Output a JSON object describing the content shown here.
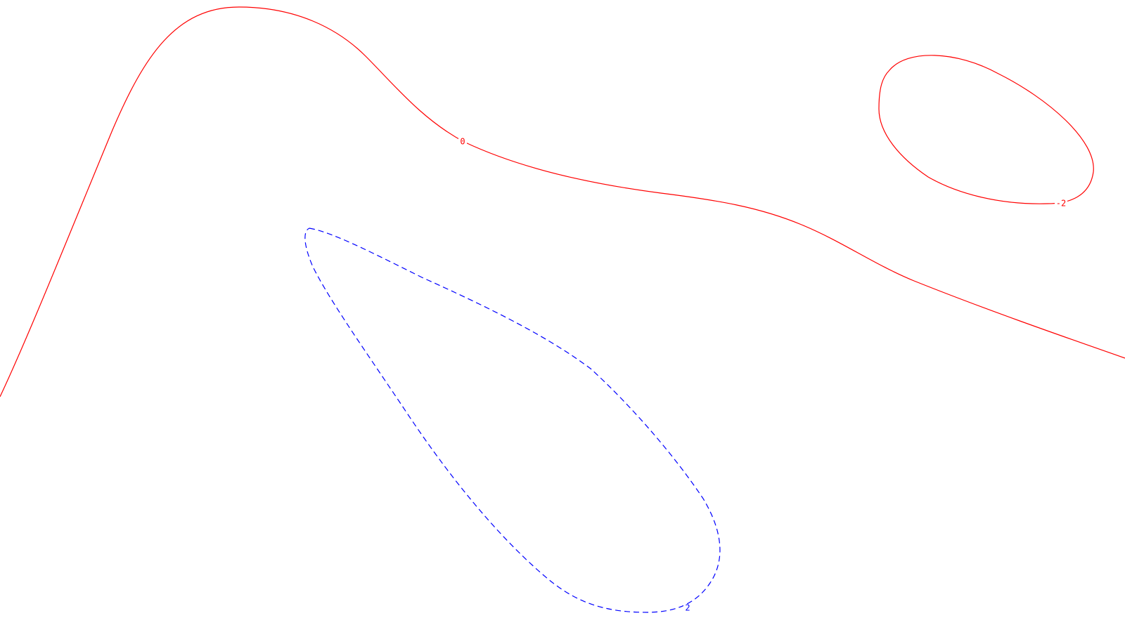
{
  "chart_data": {
    "type": "contour",
    "title": "",
    "xlabel": "",
    "ylabel": "",
    "grid": false,
    "legend": "none",
    "levels": [
      {
        "level": "0",
        "color": "#ff0000",
        "linestyle": "solid"
      },
      {
        "level": "-2",
        "color": "#ff0000",
        "linestyle": "solid"
      },
      {
        "level": "2",
        "color": "#0000ff",
        "linestyle": "dashed"
      }
    ]
  },
  "labels": {
    "zero": "0",
    "neg_two": "-2",
    "pos_two": "2"
  },
  "colors": {
    "positive": "#0000ff",
    "negative": "#ff0000",
    "background": "#ffffff"
  }
}
